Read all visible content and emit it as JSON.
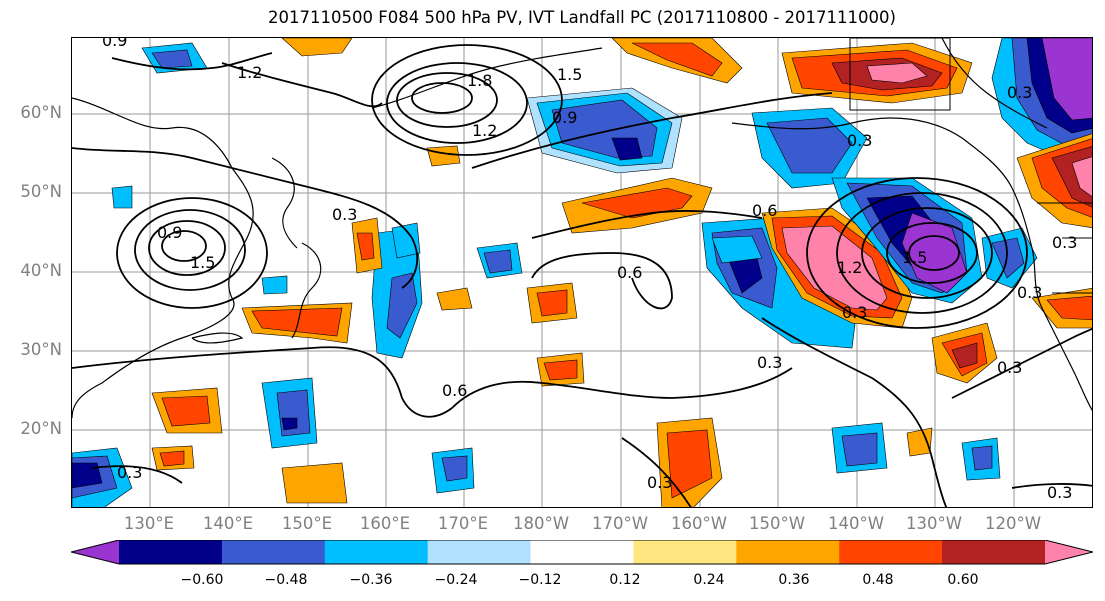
{
  "title": "2017110500 F084 500 hPa PV, IVT Landfall PC (2017110800 - 2017111000)",
  "lat_labels": [
    "60°N",
    "50°N",
    "40°N",
    "30°N",
    "20°N"
  ],
  "lon_labels": [
    "130°E",
    "140°E",
    "150°E",
    "160°E",
    "170°E",
    "180°W",
    "170°W",
    "160°W",
    "150°W",
    "140°W",
    "130°W",
    "120°W"
  ],
  "colorbar": {
    "colors": [
      "#9a35d1",
      "#00008b",
      "#3a5bd0",
      "#00bfff",
      "#b0e2ff",
      "#ffffff",
      "#ffe680",
      "#ffa500",
      "#ff4500",
      "#b22222",
      "#ff82ab"
    ],
    "ticks": [
      "−0.60",
      "−0.48",
      "−0.36",
      "−0.24",
      "−0.12",
      "0.12",
      "0.24",
      "0.36",
      "0.48",
      "0.60"
    ]
  },
  "contour_labels": [
    "0.9",
    "1.2",
    "1.8",
    "1.5",
    "1.2",
    "0.9",
    "0.3",
    "0.6",
    "0.6",
    "0.3",
    "0.9",
    "1.5",
    "0.3",
    "1.2",
    "1.5",
    "0.3",
    "0.6",
    "0.3",
    "0.3",
    "0.3",
    "0.3",
    "0.3",
    "0.3",
    "0.3"
  ]
}
